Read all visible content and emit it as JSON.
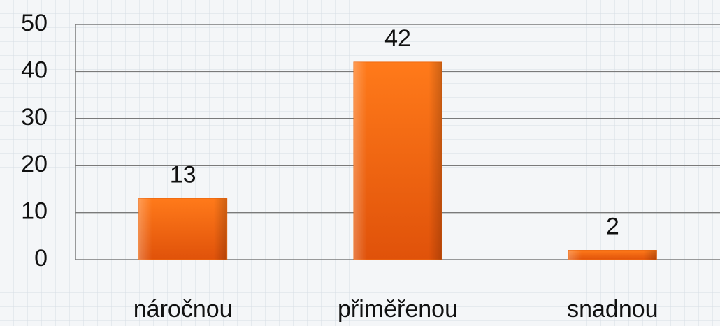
{
  "chart_data": {
    "type": "bar",
    "categories": [
      "náročnou",
      "přiměřenou",
      "snadnou"
    ],
    "values": [
      13,
      42,
      2
    ],
    "color": "#f06a10",
    "ylim": [
      0,
      50
    ],
    "yticks": [
      0,
      10,
      20,
      30,
      40,
      50
    ],
    "grid": true
  }
}
